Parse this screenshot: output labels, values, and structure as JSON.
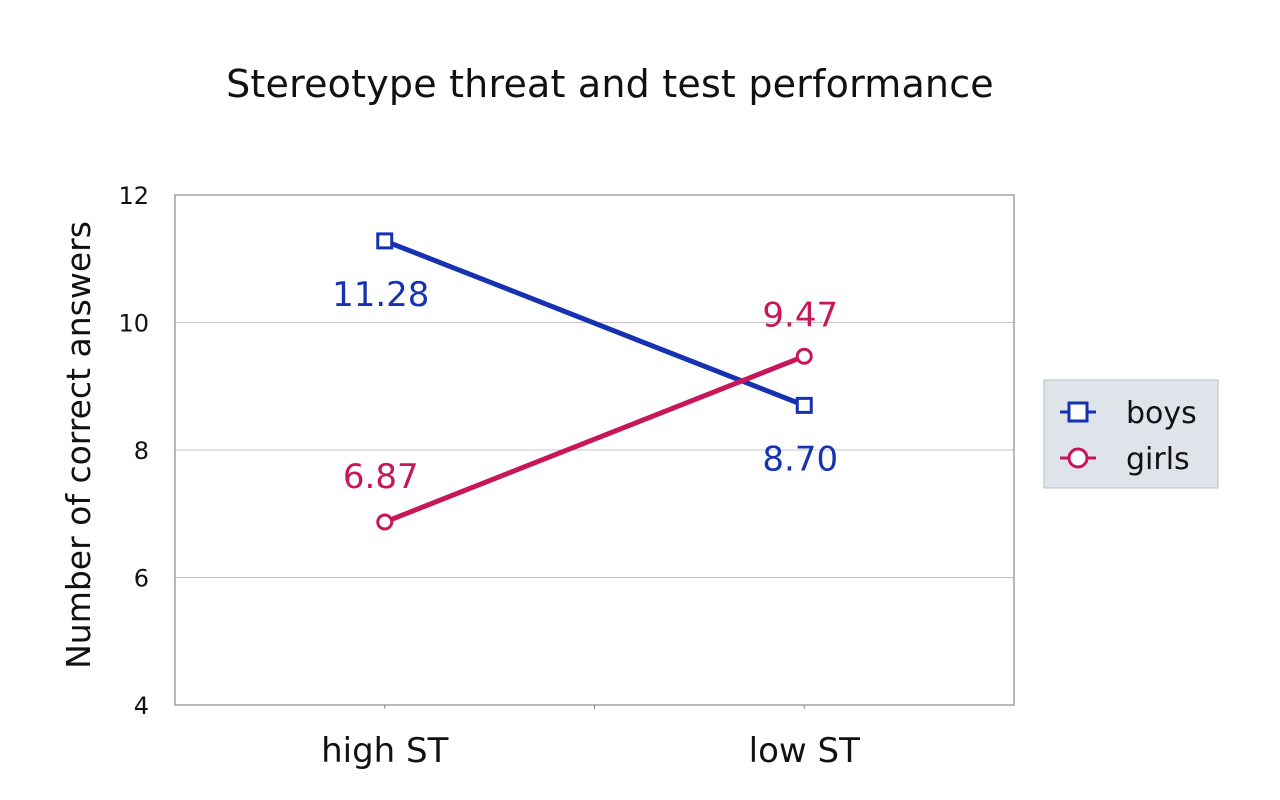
{
  "chart_data": {
    "type": "line",
    "title": "Stereotype threat and test performance",
    "xlabel": "",
    "ylabel": "Number of correct answers",
    "categories": [
      "high ST",
      "low ST"
    ],
    "ylim": [
      4,
      12
    ],
    "yticks": [
      4,
      6,
      8,
      10,
      12
    ],
    "grid": true,
    "legend": "right",
    "series": [
      {
        "name": "boys",
        "values": [
          11.28,
          8.7
        ],
        "labels": [
          "11.28",
          "8.70"
        ],
        "color": "#1632b0",
        "marker": "square"
      },
      {
        "name": "girls",
        "values": [
          6.87,
          9.47
        ],
        "labels": [
          "6.87",
          "9.47"
        ],
        "color": "#c8165a",
        "marker": "circle"
      }
    ]
  }
}
